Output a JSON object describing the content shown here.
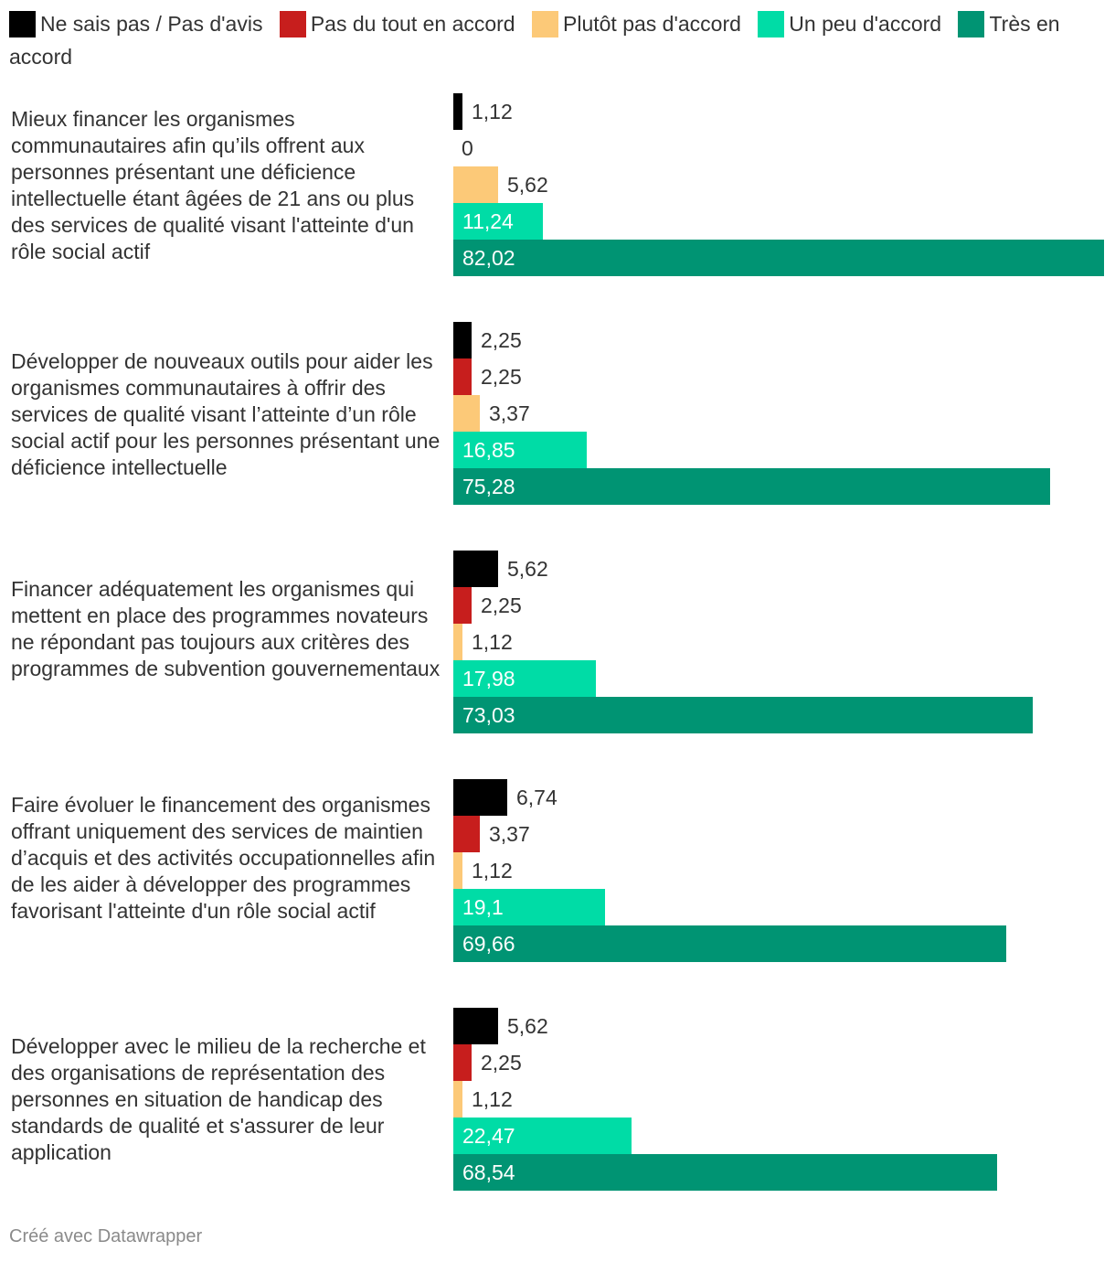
{
  "chart_data": {
    "type": "bar",
    "orientation": "horizontal",
    "title": "",
    "categories": [
      "Mieux financer les organismes communautaires afin qu’ils offrent aux personnes présentant une déficience intellectuelle étant âgées de 21 ans ou plus des services de qualité visant l'atteinte d'un rôle social actif",
      "Développer de nouveaux outils pour aider les organismes communautaires à offrir des services de qualité visant l’atteinte d’un rôle social actif pour les personnes présentant une déficience intellectuelle",
      "Financer adéquatement les organismes qui mettent en place des programmes novateurs ne répondant pas toujours aux critères des programmes de subvention gouvernementaux",
      "Faire évoluer le financement des organismes offrant uniquement des services de maintien d’acquis et des activités occupationnelles afin de les aider à développer des programmes favorisant l'atteinte d'un rôle social actif",
      "Développer avec le milieu de la recherche et des organisations de représentation des personnes en situation de handicap des standards de qualité et s'assurer de leur application"
    ],
    "series": [
      {
        "name": "Ne sais pas / Pas d'avis",
        "color": "#000000",
        "values": [
          1.12,
          2.25,
          5.62,
          6.74,
          5.62
        ],
        "labels": [
          "1,12",
          "2,25",
          "5,62",
          "6,74",
          "5,62"
        ]
      },
      {
        "name": "Pas du tout en accord",
        "color": "#c71e1d",
        "values": [
          0,
          2.25,
          2.25,
          3.37,
          2.25
        ],
        "labels": [
          "0",
          "2,25",
          "2,25",
          "3,37",
          "2,25"
        ]
      },
      {
        "name": "Plutôt pas d'accord",
        "color": "#fcc978",
        "values": [
          5.62,
          3.37,
          1.12,
          1.12,
          1.12
        ],
        "labels": [
          "5,62",
          "3,37",
          "1,12",
          "1,12",
          "1,12"
        ]
      },
      {
        "name": "Un peu d'accord",
        "color": "#00dca6",
        "values": [
          11.24,
          16.85,
          17.98,
          19.1,
          22.47
        ],
        "labels": [
          "11,24",
          "16,85",
          "17,98",
          "19,1",
          "22,47"
        ]
      },
      {
        "name": "Très en accord",
        "color": "#009473",
        "values": [
          82.02,
          75.28,
          73.03,
          69.66,
          68.54
        ],
        "labels": [
          "82,02",
          "75,28",
          "73,03",
          "69,66",
          "68,54"
        ]
      }
    ],
    "xlim": [
      0,
      82.02
    ],
    "legend": "top",
    "grid": false
  },
  "footer": "Créé avec Datawrapper"
}
